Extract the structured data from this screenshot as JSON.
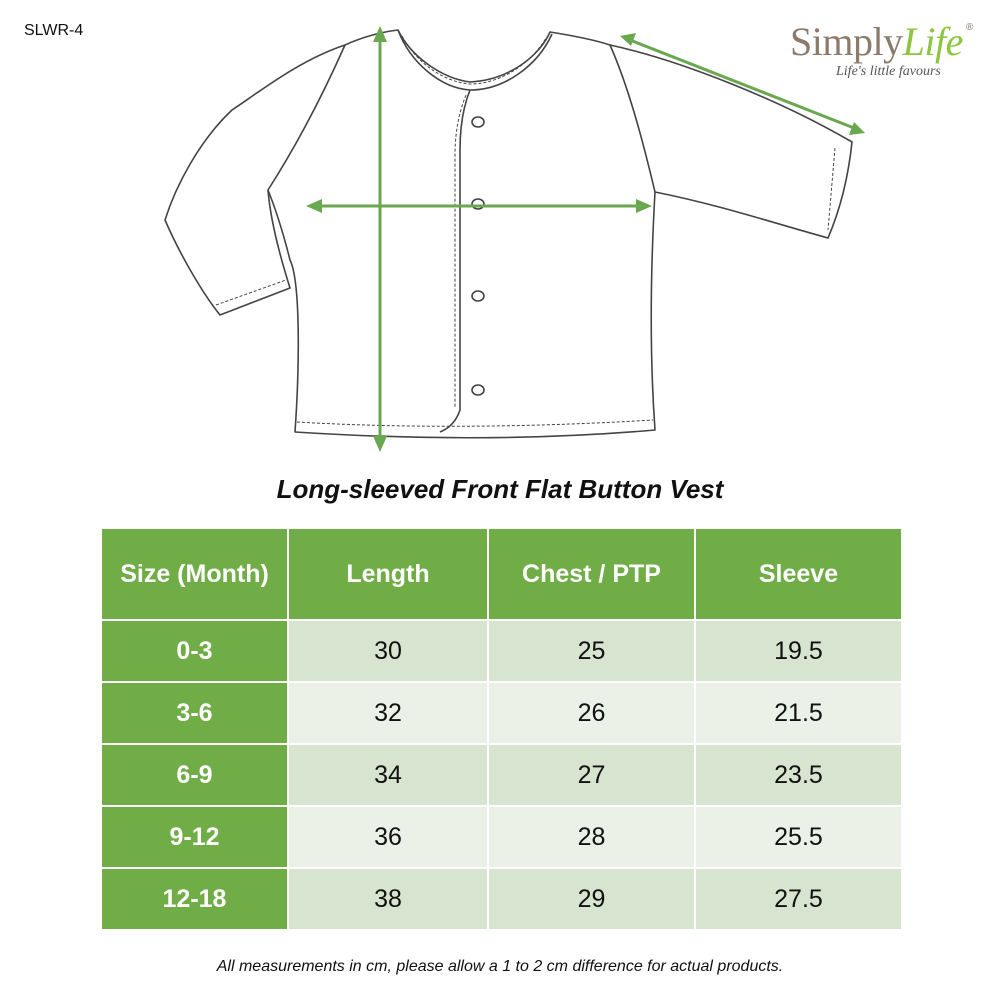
{
  "product_code": "SLWR-4",
  "brand": {
    "name_part1": "Simply",
    "name_part2": "Life",
    "registered": "®",
    "tagline": "Life's little favours"
  },
  "title": "Long-sleeved Front Flat Button Vest",
  "table": {
    "headers": [
      "Size (Month)",
      "Length",
      "Chest / PTP",
      "Sleeve"
    ],
    "rows": [
      {
        "size": "0-3",
        "length": "30",
        "chest": "25",
        "sleeve": "19.5"
      },
      {
        "size": "3-6",
        "length": "32",
        "chest": "26",
        "sleeve": "21.5"
      },
      {
        "size": "6-9",
        "length": "34",
        "chest": "27",
        "sleeve": "23.5"
      },
      {
        "size": "9-12",
        "length": "36",
        "chest": "28",
        "sleeve": "25.5"
      },
      {
        "size": "12-18",
        "length": "38",
        "chest": "29",
        "sleeve": "27.5"
      }
    ]
  },
  "footnote": "All measurements in cm, please allow a 1 to 2 cm difference for actual products.",
  "colors": {
    "header_green": "#70ad47",
    "row_light_dark": "#d7e4cf",
    "row_light": "#ecf1e8",
    "arrow_green": "#6aa84f"
  }
}
